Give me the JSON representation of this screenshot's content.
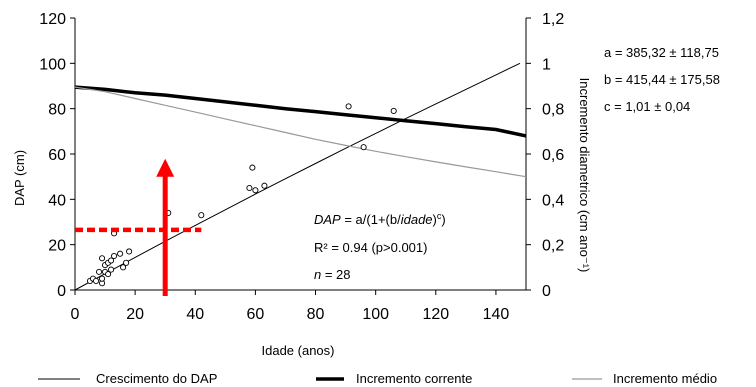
{
  "chart_data": {
    "type": "scatter",
    "title": "",
    "xlabel": "Idade (anos)",
    "ylabel": "DAP (cm)",
    "y2label": "Incremento diametrico (cm ano⁻¹)",
    "xlim": [
      0,
      150
    ],
    "ylim": [
      0,
      120
    ],
    "y2lim": [
      0,
      1.2
    ],
    "x_ticks": [
      "0",
      "20",
      "40",
      "60",
      "80",
      "100",
      "120",
      "140"
    ],
    "y_ticks": [
      "0",
      "20",
      "40",
      "60",
      "80",
      "100",
      "120"
    ],
    "y2_ticks": [
      "0",
      "0,2",
      "0,4",
      "0,6",
      "0,8",
      "1",
      "1,2"
    ],
    "grid": false,
    "legend_position": "bottom",
    "scatter_points": [
      {
        "x": 5,
        "y": 4
      },
      {
        "x": 6,
        "y": 5
      },
      {
        "x": 7,
        "y": 4
      },
      {
        "x": 8,
        "y": 8
      },
      {
        "x": 9,
        "y": 14
      },
      {
        "x": 9,
        "y": 3
      },
      {
        "x": 9,
        "y": 5
      },
      {
        "x": 10,
        "y": 8
      },
      {
        "x": 10,
        "y": 11
      },
      {
        "x": 11,
        "y": 12
      },
      {
        "x": 11,
        "y": 7
      },
      {
        "x": 12,
        "y": 13
      },
      {
        "x": 12,
        "y": 9
      },
      {
        "x": 13,
        "y": 25
      },
      {
        "x": 13,
        "y": 15
      },
      {
        "x": 15,
        "y": 16
      },
      {
        "x": 16,
        "y": 10
      },
      {
        "x": 17,
        "y": 12
      },
      {
        "x": 18,
        "y": 17
      },
      {
        "x": 42,
        "y": 33
      },
      {
        "x": 58,
        "y": 45
      },
      {
        "x": 59,
        "y": 54
      },
      {
        "x": 60,
        "y": 44
      },
      {
        "x": 63,
        "y": 46
      },
      {
        "x": 91,
        "y": 81
      },
      {
        "x": 96,
        "y": 63
      },
      {
        "x": 106,
        "y": 79
      },
      {
        "x": 31,
        "y": 34
      }
    ],
    "series": [
      {
        "name": "Crescimento do DAP",
        "axis": "left",
        "color": "#000000",
        "x": [
          0,
          10,
          20,
          30,
          40,
          50,
          60,
          70,
          80,
          90,
          100,
          110,
          120,
          130,
          140,
          148
        ],
        "y": [
          0,
          7.2,
          14.4,
          21.5,
          28.5,
          35.4,
          42.3,
          49.1,
          55.8,
          62.5,
          69.1,
          75.6,
          82.1,
          88.5,
          94.9,
          100
        ]
      },
      {
        "name": "Incremento corrente",
        "axis": "right",
        "color": "#000000",
        "x": [
          0,
          10,
          20,
          30,
          40,
          50,
          60,
          70,
          80,
          90,
          100,
          110,
          120,
          130,
          140,
          150
        ],
        "y": [
          0.895,
          0.885,
          0.87,
          0.86,
          0.845,
          0.83,
          0.815,
          0.8,
          0.787,
          0.773,
          0.76,
          0.747,
          0.734,
          0.72,
          0.708,
          0.68
        ]
      },
      {
        "name": "Incremento médio",
        "axis": "right",
        "color": "#999999",
        "x": [
          0,
          10,
          20,
          30,
          40,
          50,
          60,
          70,
          80,
          90,
          100,
          110,
          120,
          130,
          140,
          150
        ],
        "y": [
          0.895,
          0.875,
          0.845,
          0.815,
          0.785,
          0.755,
          0.725,
          0.695,
          0.665,
          0.638,
          0.612,
          0.588,
          0.565,
          0.543,
          0.522,
          0.5
        ]
      }
    ],
    "annotations": {
      "dashed_line_y": 26.5,
      "dashed_line_x_range": [
        0,
        42
      ],
      "arrow_x": 30,
      "arrow_y_range": [
        0,
        57
      ],
      "accent_color": "#ff0000"
    }
  },
  "equation": {
    "dap": "DAP",
    "eq_a": " = a/(1+(b/",
    "idade": "idade",
    "eq_b": ")",
    "c": "c",
    "eq_c": ")",
    "r2": "R² = 0.94 (p>0.001)",
    "n": "n",
    "n_rest": " = 28"
  },
  "params": {
    "a": "a = 385,32 ± 118,75",
    "b": "b = 415,44 ± 175,58",
    "c": "c = 1,01 ± 0,04"
  }
}
